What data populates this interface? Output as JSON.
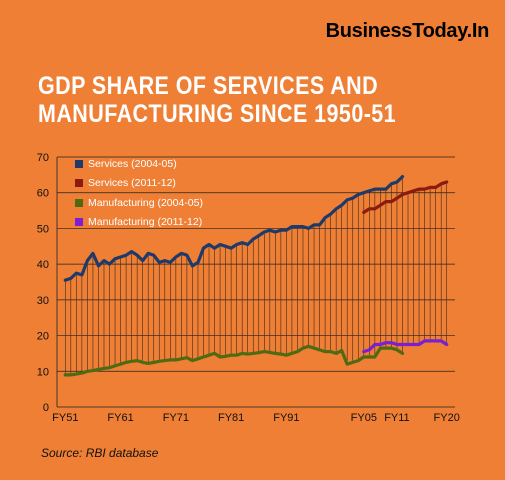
{
  "brand": "BusinessToday.In",
  "title_lines": [
    "GDP SHARE OF SERVICES AND",
    "MANUFACTURING SINCE 1950-51"
  ],
  "source": "Source: RBI database",
  "colors": {
    "background": "#ef7f35",
    "services_2004": "#1f3a68",
    "services_2011": "#8b1a10",
    "manufacturing_2004": "#4e6b12",
    "manufacturing_2011": "#7a1fd6"
  },
  "chart_data": {
    "type": "line",
    "title": "GDP SHARE OF SERVICES AND MANUFACTURING SINCE 1950-51",
    "xlabel": "",
    "ylabel": "",
    "ylim": [
      0,
      70
    ],
    "yticks": [
      "0",
      "10",
      "20",
      "30",
      "40",
      "50",
      "60",
      "70"
    ],
    "xticks": [
      {
        "label": "FY51",
        "x": 1951
      },
      {
        "label": "FY61",
        "x": 1961
      },
      {
        "label": "FY71",
        "x": 1971
      },
      {
        "label": "FY81",
        "x": 1981
      },
      {
        "label": "FY91",
        "x": 1991
      },
      {
        "label": "FY05",
        "x": 2005
      },
      {
        "label": "FY11",
        "x": 2011
      },
      {
        "label": "FY20",
        "x": 2020
      }
    ],
    "xlim": [
      1949.5,
      2021.5
    ],
    "grid": "horizontal gridlines every 10 units; vertical hatch lines each year between manufacturing and services",
    "legend_position": "top-left",
    "series": [
      {
        "name": "Services (2004-05)",
        "color": "#1f3a68",
        "x": [
          1951,
          1952,
          1953,
          1954,
          1955,
          1956,
          1957,
          1958,
          1959,
          1960,
          1961,
          1962,
          1963,
          1964,
          1965,
          1966,
          1967,
          1968,
          1969,
          1970,
          1971,
          1972,
          1973,
          1974,
          1975,
          1976,
          1977,
          1978,
          1979,
          1980,
          1981,
          1982,
          1983,
          1984,
          1985,
          1986,
          1987,
          1988,
          1989,
          1990,
          1991,
          1992,
          1993,
          1994,
          1995,
          1996,
          1997,
          1998,
          1999,
          2000,
          2001,
          2002,
          2003,
          2004,
          2005,
          2006,
          2007,
          2008,
          2009,
          2010,
          2011,
          2012
        ],
        "values": [
          35.5,
          36,
          37.5,
          37,
          41,
          43,
          39.5,
          41,
          40,
          41.5,
          42,
          42.5,
          43.5,
          42.5,
          41,
          43,
          42.5,
          40.5,
          41,
          40.5,
          42,
          43,
          42.5,
          39.5,
          40.5,
          44.5,
          45.5,
          44.5,
          45.5,
          45,
          44.5,
          45.5,
          46,
          45.5,
          47,
          48,
          49,
          49.5,
          49,
          49.5,
          49.5,
          50.5,
          50.5,
          50.5,
          50,
          51,
          51,
          53,
          54,
          55.5,
          56.5,
          58,
          58.5,
          59.5,
          60,
          60.5,
          61,
          61,
          61,
          62.5,
          63,
          64.5
        ]
      },
      {
        "name": "Services (2011-12)",
        "color": "#8b1a10",
        "x": [
          2005,
          2006,
          2007,
          2008,
          2009,
          2010,
          2011,
          2012,
          2013,
          2014,
          2015,
          2016,
          2017,
          2018,
          2019,
          2020
        ],
        "values": [
          54.5,
          55.5,
          55.5,
          56.5,
          57.5,
          57.5,
          58.5,
          59.5,
          60,
          60.5,
          61,
          61,
          61.5,
          61.5,
          62.5,
          63
        ]
      },
      {
        "name": "Manufacturing (2004-05)",
        "color": "#4e6b12",
        "x": [
          1951,
          1952,
          1953,
          1954,
          1955,
          1956,
          1957,
          1958,
          1959,
          1960,
          1961,
          1962,
          1963,
          1964,
          1965,
          1966,
          1967,
          1968,
          1969,
          1970,
          1971,
          1972,
          1973,
          1974,
          1975,
          1976,
          1977,
          1978,
          1979,
          1980,
          1981,
          1982,
          1983,
          1984,
          1985,
          1986,
          1987,
          1988,
          1989,
          1990,
          1991,
          1992,
          1993,
          1994,
          1995,
          1996,
          1997,
          1998,
          1999,
          2000,
          2001,
          2002,
          2003,
          2004,
          2005,
          2006,
          2007,
          2008,
          2009,
          2010,
          2011,
          2012
        ],
        "values": [
          9,
          9,
          9.2,
          9.5,
          10,
          10.2,
          10.5,
          10.8,
          11,
          11.5,
          12,
          12.5,
          12.8,
          13,
          12.5,
          12.2,
          12.5,
          12.8,
          13,
          13.2,
          13.2,
          13.5,
          13.8,
          13,
          13.5,
          14,
          14.5,
          15,
          14,
          14.2,
          14.5,
          14.5,
          15,
          14.8,
          15,
          15.2,
          15.5,
          15.3,
          15,
          14.8,
          14.5,
          15,
          15.5,
          16.5,
          17,
          16.5,
          16,
          15.5,
          15.5,
          15,
          15.8,
          12,
          12.5,
          13,
          14,
          14,
          14,
          16.5,
          16.5,
          16.5,
          16,
          15
        ]
      },
      {
        "name": "Manufacturing (2011-12)",
        "color": "#7a1fd6",
        "x": [
          2005,
          2006,
          2007,
          2008,
          2009,
          2010,
          2011,
          2012,
          2013,
          2014,
          2015,
          2016,
          2017,
          2018,
          2019,
          2020
        ],
        "values": [
          15.5,
          16,
          17.5,
          17.5,
          18,
          18,
          17.5,
          17.5,
          17.5,
          17.5,
          17.5,
          18.5,
          18.5,
          18.5,
          18.5,
          17.5
        ]
      }
    ]
  }
}
